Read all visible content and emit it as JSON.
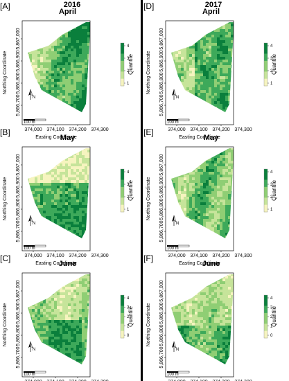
{
  "header": {
    "left_year": "2016",
    "right_year": "2017"
  },
  "axes": {
    "x_label": "Easting Coordinate",
    "y_label": "Northing Coordinate",
    "x_ticks": [
      "374,000",
      "374,100",
      "374,200",
      "374,300"
    ],
    "y_ticks": [
      "5,866,700",
      "5,866,800",
      "5,866,900",
      "5,867,000"
    ]
  },
  "legend": {
    "label": "Quantile"
  },
  "colors": {
    "scale": [
      "#f6f4bf",
      "#c6e49a",
      "#8fce74",
      "#3da95a",
      "#0a7f3c"
    ],
    "divider": "#000000"
  },
  "panels": [
    {
      "letter": "[A]",
      "title": "April",
      "ticks": [
        "1",
        "2",
        "3",
        "4"
      ],
      "pattern": 0
    },
    {
      "letter": "[D]",
      "title": "April",
      "ticks": [
        "1",
        "2",
        "3",
        "4"
      ],
      "pattern": 1
    },
    {
      "letter": "[B]",
      "title": "May",
      "ticks": [
        "1",
        "2",
        "3",
        "4"
      ],
      "pattern": 2
    },
    {
      "letter": "[E]",
      "title": "May",
      "ticks": [
        "1",
        "2",
        "3",
        "4"
      ],
      "pattern": 3
    },
    {
      "letter": "[C]",
      "title": "June",
      "ticks": [
        "0",
        "1",
        "2",
        "3",
        "4"
      ],
      "pattern": 4
    },
    {
      "letter": "[F]",
      "title": "June",
      "ticks": [
        "0",
        "1",
        "2",
        "3",
        "4"
      ],
      "pattern": 5
    }
  ],
  "scale_bar": {
    "label": "100 m"
  },
  "north_arrow": {
    "label": "N"
  }
}
